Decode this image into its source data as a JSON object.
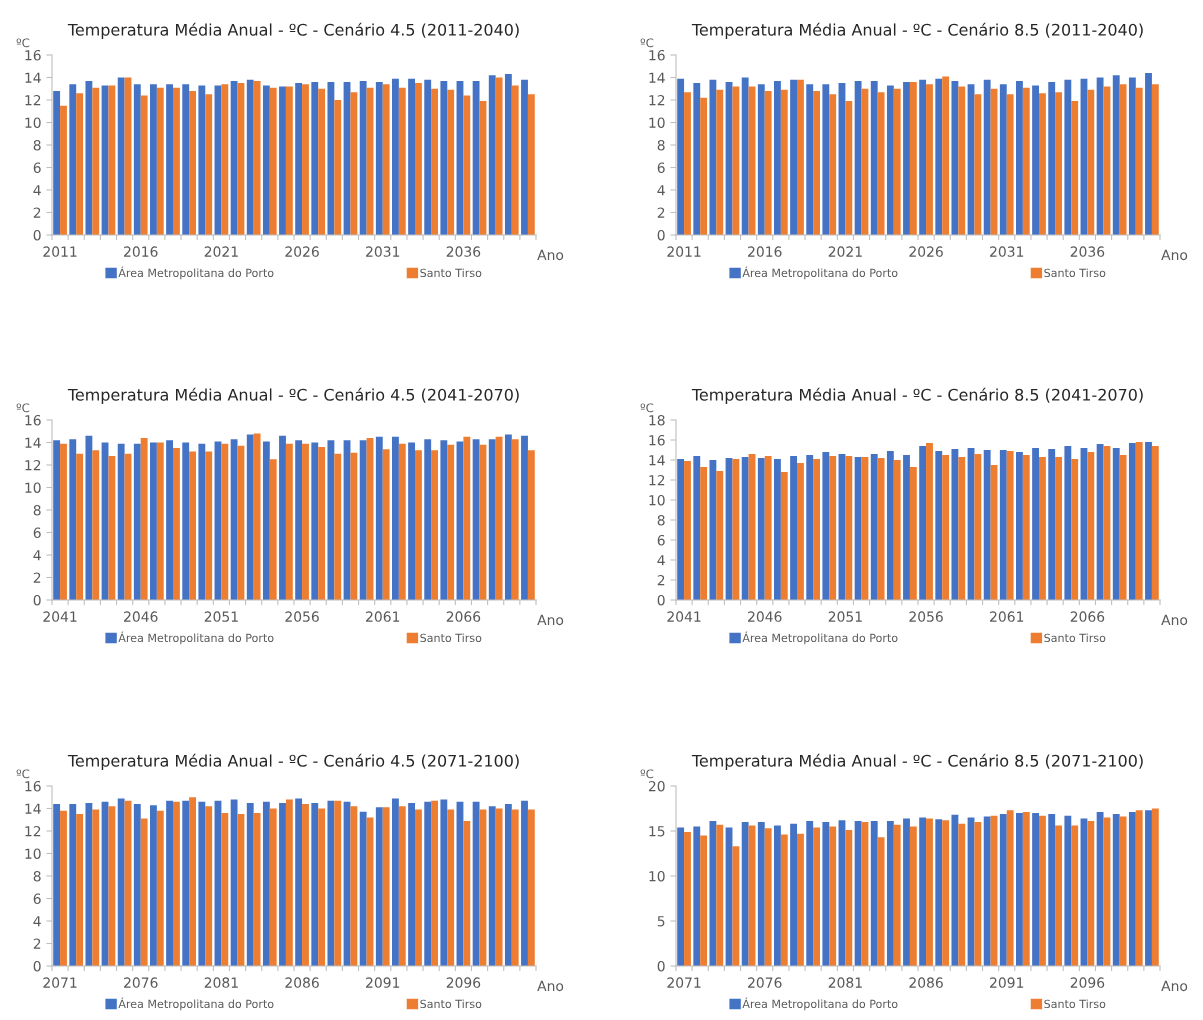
{
  "chart_data": [
    {
      "type": "bar",
      "title": "Temperatura Média Anual - ºC - Cenário 4.5 (2011-2040)",
      "xlabel": "Ano",
      "ylabel": "ºC",
      "categories": [
        "2011",
        null,
        null,
        null,
        null,
        "2016",
        null,
        null,
        null,
        null,
        "2021",
        null,
        null,
        null,
        null,
        "2026",
        null,
        null,
        null,
        null,
        "2031",
        null,
        null,
        null,
        null,
        "2036",
        null,
        null,
        null,
        null
      ],
      "series": [
        {
          "name": "Área Metropolitana do Porto",
          "color": "#4472c4",
          "values": [
            12.8,
            13.4,
            13.7,
            13.3,
            14.0,
            13.4,
            13.4,
            13.4,
            13.4,
            13.3,
            13.3,
            13.7,
            13.8,
            13.3,
            13.2,
            13.5,
            13.6,
            13.6,
            13.6,
            13.7,
            13.6,
            13.9,
            13.9,
            13.8,
            13.7,
            13.7,
            13.7,
            14.2,
            14.3,
            13.8
          ]
        },
        {
          "name": "Santo Tirso",
          "color": "#ed7d31",
          "values": [
            11.5,
            12.6,
            13.1,
            13.3,
            14.0,
            12.4,
            13.1,
            13.1,
            12.8,
            12.5,
            13.4,
            13.5,
            13.7,
            13.1,
            13.2,
            13.4,
            13.0,
            12.0,
            12.7,
            13.1,
            13.4,
            13.1,
            13.5,
            13.0,
            12.9,
            12.4,
            11.9,
            14.0,
            13.3,
            12.5
          ]
        }
      ],
      "ylim": [
        0,
        16
      ],
      "yticks": [
        0,
        2,
        4,
        6,
        8,
        10,
        12,
        14,
        16
      ],
      "legend": "bottom",
      "grid": false
    },
    {
      "type": "bar",
      "title": "Temperatura Média Anual - ºC - Cenário 8.5 (2011-2040)",
      "xlabel": "Ano",
      "ylabel": "ºC",
      "categories": [
        "2011",
        null,
        null,
        null,
        null,
        "2016",
        null,
        null,
        null,
        null,
        "2021",
        null,
        null,
        null,
        null,
        "2026",
        null,
        null,
        null,
        null,
        "2031",
        null,
        null,
        null,
        null,
        "2036",
        null,
        null,
        null,
        null
      ],
      "series": [
        {
          "name": "Área Metropolitana do Porto",
          "color": "#4472c4",
          "values": [
            13.9,
            13.5,
            13.8,
            13.6,
            14.0,
            13.4,
            13.7,
            13.8,
            13.4,
            13.4,
            13.5,
            13.7,
            13.7,
            13.3,
            13.6,
            13.8,
            13.9,
            13.7,
            13.4,
            13.8,
            13.4,
            13.7,
            13.3,
            13.6,
            13.8,
            13.9,
            14.0,
            14.2,
            14.0,
            14.4
          ]
        },
        {
          "name": "Santo Tirso",
          "color": "#ed7d31",
          "values": [
            12.7,
            12.2,
            12.9,
            13.2,
            13.2,
            12.8,
            12.9,
            13.8,
            12.8,
            12.5,
            11.9,
            13.0,
            12.7,
            13.0,
            13.6,
            13.4,
            14.1,
            13.2,
            12.5,
            13.0,
            12.5,
            13.1,
            12.6,
            12.7,
            11.9,
            12.9,
            13.2,
            13.4,
            13.1,
            13.4
          ]
        }
      ],
      "ylim": [
        0,
        16
      ],
      "yticks": [
        0,
        2,
        4,
        6,
        8,
        10,
        12,
        14,
        16
      ],
      "legend": "bottom",
      "grid": false
    },
    {
      "type": "bar",
      "title": "Temperatura Média Anual - ºC - Cenário 4.5 (2041-2070)",
      "xlabel": "Ano",
      "ylabel": "ºC",
      "categories": [
        "2041",
        null,
        null,
        null,
        null,
        "2046",
        null,
        null,
        null,
        null,
        "2051",
        null,
        null,
        null,
        null,
        "2056",
        null,
        null,
        null,
        null,
        "2061",
        null,
        null,
        null,
        null,
        "2066",
        null,
        null,
        null,
        null
      ],
      "series": [
        {
          "name": "Área Metropolitana do Porto",
          "color": "#4472c4",
          "values": [
            14.2,
            14.3,
            14.6,
            14.0,
            13.9,
            13.9,
            14.0,
            14.2,
            14.0,
            13.9,
            14.1,
            14.3,
            14.7,
            14.1,
            14.6,
            14.2,
            14.0,
            14.2,
            14.2,
            14.2,
            14.5,
            14.5,
            14.0,
            14.3,
            14.2,
            14.1,
            14.3,
            14.3,
            14.7,
            14.6
          ]
        },
        {
          "name": "Santo Tirso",
          "color": "#ed7d31",
          "values": [
            13.9,
            13.0,
            13.3,
            12.8,
            13.0,
            14.4,
            14.0,
            13.5,
            13.2,
            13.2,
            13.9,
            13.7,
            14.8,
            12.5,
            13.9,
            13.9,
            13.6,
            13.0,
            13.1,
            14.4,
            13.4,
            13.9,
            13.3,
            13.3,
            13.8,
            14.5,
            13.8,
            14.5,
            14.3,
            13.3
          ]
        }
      ],
      "ylim": [
        0,
        16
      ],
      "yticks": [
        0,
        2,
        4,
        6,
        8,
        10,
        12,
        14,
        16
      ],
      "legend": "bottom",
      "grid": false
    },
    {
      "type": "bar",
      "title": "Temperatura Média Anual - ºC - Cenário 8.5 (2041-2070)",
      "xlabel": "Ano",
      "ylabel": "ºC",
      "categories": [
        "2041",
        null,
        null,
        null,
        null,
        "2046",
        null,
        null,
        null,
        null,
        "2051",
        null,
        null,
        null,
        null,
        "2056",
        null,
        null,
        null,
        null,
        "2061",
        null,
        null,
        null,
        null,
        "2066",
        null,
        null,
        null,
        null
      ],
      "series": [
        {
          "name": "Área Metropolitana do Porto",
          "color": "#4472c4",
          "values": [
            14.1,
            14.4,
            14.0,
            14.2,
            14.3,
            14.2,
            14.1,
            14.4,
            14.5,
            14.8,
            14.6,
            14.3,
            14.6,
            14.9,
            14.5,
            15.4,
            14.9,
            15.1,
            15.2,
            15.0,
            15.0,
            14.8,
            15.2,
            15.1,
            15.4,
            15.2,
            15.6,
            15.2,
            15.7,
            15.8
          ]
        },
        {
          "name": "Santo Tirso",
          "color": "#ed7d31",
          "values": [
            13.9,
            13.3,
            12.9,
            14.1,
            14.6,
            14.4,
            12.8,
            13.7,
            14.1,
            14.4,
            14.4,
            14.3,
            14.2,
            14.0,
            13.3,
            15.7,
            14.5,
            14.3,
            14.6,
            13.5,
            14.9,
            14.5,
            14.3,
            14.3,
            14.1,
            14.8,
            15.4,
            14.5,
            15.8,
            15.4
          ]
        }
      ],
      "ylim": [
        0,
        18
      ],
      "yticks": [
        0,
        2,
        4,
        6,
        8,
        10,
        12,
        14,
        16,
        18
      ],
      "legend": "bottom",
      "grid": false
    },
    {
      "type": "bar",
      "title": "Temperatura Média Anual - ºC - Cenário 4.5 (2071-2100)",
      "xlabel": "Ano",
      "ylabel": "ºC",
      "categories": [
        "2071",
        null,
        null,
        null,
        null,
        "2076",
        null,
        null,
        null,
        null,
        "2081",
        null,
        null,
        null,
        null,
        "2086",
        null,
        null,
        null,
        null,
        "2091",
        null,
        null,
        null,
        null,
        "2096",
        null,
        null,
        null,
        null
      ],
      "series": [
        {
          "name": "Área Metropolitana do Porto",
          "color": "#4472c4",
          "values": [
            14.4,
            14.4,
            14.5,
            14.6,
            14.9,
            14.4,
            14.3,
            14.7,
            14.7,
            14.6,
            14.7,
            14.8,
            14.5,
            14.6,
            14.5,
            14.9,
            14.5,
            14.7,
            14.6,
            13.7,
            14.1,
            14.9,
            14.5,
            14.6,
            14.8,
            14.6,
            14.6,
            14.2,
            14.4,
            14.7
          ]
        },
        {
          "name": "Santo Tirso",
          "color": "#ed7d31",
          "values": [
            13.8,
            13.5,
            13.9,
            14.2,
            14.7,
            13.1,
            13.8,
            14.6,
            15.0,
            14.2,
            13.6,
            13.5,
            13.6,
            14.0,
            14.8,
            14.4,
            14.0,
            14.7,
            14.2,
            13.2,
            14.1,
            14.2,
            13.9,
            14.7,
            13.9,
            12.9,
            13.9,
            14.0,
            13.9,
            13.9
          ]
        }
      ],
      "ylim": [
        0,
        16
      ],
      "yticks": [
        0,
        2,
        4,
        6,
        8,
        10,
        12,
        14,
        16
      ],
      "legend": "bottom",
      "grid": false
    },
    {
      "type": "bar",
      "title": "Temperatura Média Anual - ºC - Cenário 8.5 (2071-2100)",
      "xlabel": "Ano",
      "ylabel": "ºC",
      "categories": [
        "2071",
        null,
        null,
        null,
        null,
        "2076",
        null,
        null,
        null,
        null,
        "2081",
        null,
        null,
        null,
        null,
        "2086",
        null,
        null,
        null,
        null,
        "2091",
        null,
        null,
        null,
        null,
        "2096",
        null,
        null,
        null,
        null
      ],
      "series": [
        {
          "name": "Área Metropolitana do Porto",
          "color": "#4472c4",
          "values": [
            15.4,
            15.5,
            16.1,
            15.4,
            16.0,
            16.0,
            15.6,
            15.8,
            16.1,
            16.0,
            16.2,
            16.1,
            16.1,
            16.1,
            16.4,
            16.5,
            16.3,
            16.8,
            16.5,
            16.6,
            16.9,
            17.0,
            17.0,
            16.9,
            16.7,
            16.4,
            17.1,
            16.9,
            17.1,
            17.3
          ]
        },
        {
          "name": "Santo Tirso",
          "color": "#ed7d31",
          "values": [
            14.9,
            14.5,
            15.7,
            13.3,
            15.6,
            15.3,
            14.6,
            14.7,
            15.4,
            15.5,
            15.1,
            16.0,
            14.3,
            15.7,
            15.5,
            16.4,
            16.2,
            15.8,
            16.0,
            16.7,
            17.3,
            17.1,
            16.7,
            15.6,
            15.6,
            16.1,
            16.5,
            16.6,
            17.3,
            17.5
          ]
        }
      ],
      "ylim": [
        0,
        20
      ],
      "yticks": [
        0,
        5,
        10,
        15,
        20
      ],
      "legend": "bottom",
      "grid": false
    }
  ]
}
